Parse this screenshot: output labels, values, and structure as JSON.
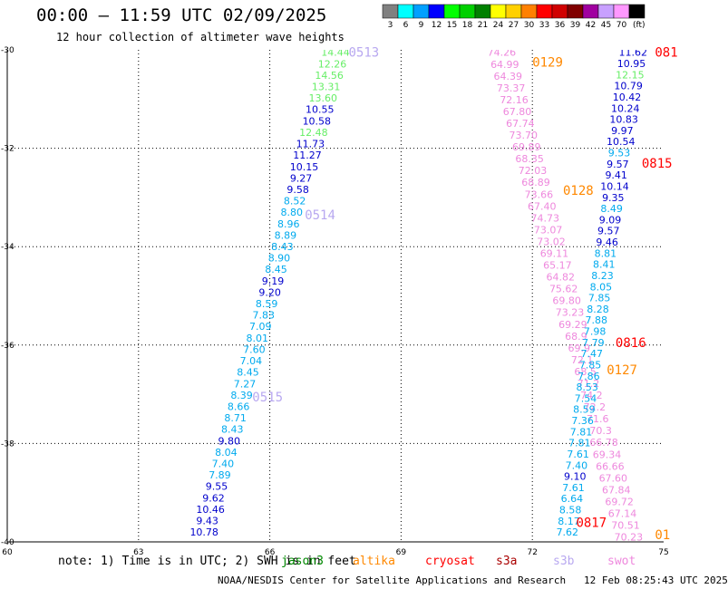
{
  "header": {
    "title": "00:00 – 11:59 UTC 02/09/2025",
    "subtitle": "12 hour collection of altimeter wave heights"
  },
  "colorbar": {
    "unit": "(ft)",
    "bins": [
      {
        "label": "3",
        "color": "#808080"
      },
      {
        "label": "6",
        "color": "#00ffff"
      },
      {
        "label": "9",
        "color": "#00a0ff"
      },
      {
        "label": "12",
        "color": "#0000ff"
      },
      {
        "label": "15",
        "color": "#00ff00"
      },
      {
        "label": "18",
        "color": "#00d000"
      },
      {
        "label": "21",
        "color": "#008000"
      },
      {
        "label": "24",
        "color": "#ffff00"
      },
      {
        "label": "27",
        "color": "#ffd000"
      },
      {
        "label": "30",
        "color": "#ff8000"
      },
      {
        "label": "33",
        "color": "#ff0000"
      },
      {
        "label": "36",
        "color": "#d00000"
      },
      {
        "label": "39",
        "color": "#800000"
      },
      {
        "label": "42",
        "color": "#a000a0"
      },
      {
        "label": "45",
        "color": "#c8a0ff"
      },
      {
        "label": "70",
        "color": "#ff98ff"
      },
      {
        "label": "",
        "color": "#000000"
      }
    ]
  },
  "axes": {
    "x_ticks": [
      "60",
      "63",
      "66",
      "69",
      "72",
      "75"
    ],
    "y_ticks": [
      "-30",
      "-32",
      "-34",
      "-36",
      "-38",
      "-40"
    ]
  },
  "chart_data": {
    "type": "scatter",
    "x_range": [
      60,
      75
    ],
    "y_range": [
      -40,
      -30
    ],
    "grid": true,
    "tracks": [
      {
        "x_start": 67.5,
        "y_start": -30.05,
        "x_end": 64.5,
        "y_end": -39.8,
        "values": [
          "14.44",
          "12.26",
          "14.56",
          "13.31",
          "13.60",
          "10.55",
          "10.58",
          "12.48",
          "11.73",
          "11.27",
          "10.15",
          "9.27",
          "9.58",
          "8.52",
          "8.80",
          "8.96",
          "8.89",
          "8.43",
          "8.90",
          "8.45",
          "9.19",
          "9.20",
          "8.59",
          "7.83",
          "7.09",
          "8.01",
          "7.60",
          "7.04",
          "8.45",
          "7.27",
          "8.39",
          "8.66",
          "8.71",
          "8.43",
          "9.80",
          "8.04",
          "7.40",
          "7.89",
          "9.55",
          "9.62",
          "10.46",
          "9.43",
          "10.78"
        ],
        "colors": [
          "#66ee66",
          "#66ee66",
          "#66ee66",
          "#66ee66",
          "#66ee66",
          "#0000cc",
          "#0000cc",
          "#66ee66",
          "#0000cc",
          "#0000cc",
          "#0000cc",
          "#0000cc",
          "#0000cc",
          "#00aaee",
          "#00aaee",
          "#00aaee",
          "#00aaee",
          "#00aaee",
          "#00aaee",
          "#00aaee",
          "#0000cc",
          "#0000cc",
          "#00aaee",
          "#00aaee",
          "#00aaee",
          "#00aaee",
          "#00aaee",
          "#00aaee",
          "#00aaee",
          "#00aaee",
          "#00aaee",
          "#00aaee",
          "#00aaee",
          "#00aaee",
          "#0000cc",
          "#00aaee",
          "#00aaee",
          "#00aaee",
          "#0000cc",
          "#0000cc",
          "#0000cc",
          "#0000cc",
          "#0000cc"
        ]
      },
      {
        "x_start": 71.3,
        "y_start": -30.05,
        "x_end": 74.2,
        "y_end": -39.9,
        "values": [
          "74.26",
          "64.99",
          "64.39",
          "73.37",
          "72.16",
          "67.80",
          "67.74",
          "73.70",
          "69.89",
          "68.35",
          "72.03",
          "68.89",
          "73.66",
          "67.40",
          "74.73",
          "73.07",
          "73.02",
          "69.11",
          "65.17",
          "64.82",
          "75.62",
          "69.80",
          "73.23",
          "69.29",
          "68.9",
          "69.9",
          "72.1",
          "68.5",
          "71.2",
          "74.2",
          "72.2",
          "71.6",
          "70.3",
          "66.78",
          "69.34",
          "66.66",
          "67.60",
          "67.84",
          "69.72",
          "67.14",
          "70.51",
          "70.23"
        ],
        "colors": [
          "#ee88dd",
          "#ee88dd",
          "#ee88dd",
          "#ee88dd",
          "#ee88dd",
          "#ee88dd",
          "#ee88dd",
          "#ee88dd",
          "#ee88dd",
          "#ee88dd",
          "#ee88dd",
          "#ee88dd",
          "#ee88dd",
          "#ee88dd",
          "#ee88dd",
          "#ee88dd",
          "#ee88dd",
          "#ee88dd",
          "#ee88dd",
          "#ee88dd",
          "#ee88dd",
          "#ee88dd",
          "#ee88dd",
          "#ee88dd",
          "#ee88dd",
          "#ee88dd",
          "#ee88dd",
          "#ee88dd",
          "#ee88dd",
          "#ee88dd",
          "#ee88dd",
          "#ee88dd",
          "#ee88dd",
          "#ee88dd",
          "#ee88dd",
          "#ee88dd",
          "#ee88dd",
          "#ee88dd",
          "#ee88dd",
          "#ee88dd",
          "#ee88dd",
          "#ee88dd"
        ]
      },
      {
        "x_start": 74.3,
        "y_start": -30.05,
        "x_end": 72.8,
        "y_end": -39.8,
        "values": [
          "11.62",
          "10.95",
          "12.15",
          "10.79",
          "10.42",
          "10.24",
          "10.83",
          "9.97",
          "10.54",
          "9.53",
          "9.57",
          "9.41",
          "10.14",
          "9.35",
          "8.49",
          "9.09",
          "9.57",
          "9.46",
          "8.81",
          "8.41",
          "8.23",
          "8.05",
          "7.85",
          "8.28",
          "7.88",
          "7.98",
          "7.79",
          "7.47",
          "7.85",
          "7.86",
          "8.53",
          "7.54",
          "8.59",
          "7.36",
          "7.81",
          "7.81",
          "7.61",
          "7.40",
          "9.10",
          "7.61",
          "6.64",
          "8.58",
          "8.17",
          "7.62"
        ],
        "colors": [
          "#0000cc",
          "#0000cc",
          "#66ee66",
          "#0000cc",
          "#0000cc",
          "#0000cc",
          "#0000cc",
          "#0000cc",
          "#0000cc",
          "#00aaee",
          "#0000cc",
          "#0000cc",
          "#0000cc",
          "#0000cc",
          "#00aaee",
          "#0000cc",
          "#0000cc",
          "#0000cc",
          "#00aaee",
          "#00aaee",
          "#00aaee",
          "#00aaee",
          "#00aaee",
          "#00aaee",
          "#00aaee",
          "#00aaee",
          "#00aaee",
          "#00aaee",
          "#00aaee",
          "#00aaee",
          "#00aaee",
          "#00aaee",
          "#00aaee",
          "#00aaee",
          "#00aaee",
          "#00aaee",
          "#00aaee",
          "#00aaee",
          "#0000cc",
          "#00aaee",
          "#00aaee",
          "#00aaee",
          "#00aaee",
          "#00aaee"
        ]
      }
    ],
    "time_labels": [
      {
        "text": "0513",
        "x": 67.8,
        "y": -30.05,
        "color": "#b8a8f0"
      },
      {
        "text": "0514",
        "x": 66.8,
        "y": -33.35,
        "color": "#b8a8f0"
      },
      {
        "text": "0515",
        "x": 65.6,
        "y": -37.05,
        "color": "#b8a8f0"
      },
      {
        "text": "0129",
        "x": 72.0,
        "y": -30.25,
        "color": "#ff8800"
      },
      {
        "text": "0128",
        "x": 72.7,
        "y": -32.85,
        "color": "#ff8800"
      },
      {
        "text": "0127",
        "x": 73.7,
        "y": -36.5,
        "color": "#ff8800"
      },
      {
        "text": "01",
        "x": 74.8,
        "y": -39.85,
        "color": "#ff8800"
      },
      {
        "text": "081",
        "x": 74.8,
        "y": -30.05,
        "color": "#ff0000"
      },
      {
        "text": "0815",
        "x": 74.5,
        "y": -32.3,
        "color": "#ff0000"
      },
      {
        "text": "0816",
        "x": 73.9,
        "y": -35.95,
        "color": "#ff0000"
      },
      {
        "text": "0817",
        "x": 73.0,
        "y": -39.6,
        "color": "#ff0000"
      }
    ]
  },
  "footer": {
    "note": "note: 1) Time is in UTC; 2) SWH is in feet",
    "legend": [
      {
        "text": "jason3",
        "color": "#008800"
      },
      {
        "text": "altika",
        "color": "#ff8800"
      },
      {
        "text": "cryosat",
        "color": "#ff0000"
      },
      {
        "text": "s3a",
        "color": "#aa0000"
      },
      {
        "text": "s3b",
        "color": "#b8a8f0"
      },
      {
        "text": "swot",
        "color": "#ee88dd"
      }
    ],
    "credit": "NOAA/NESDIS Center for Satellite Applications and Research",
    "timestamp": "12 Feb 08:25:43 UTC 2025"
  }
}
